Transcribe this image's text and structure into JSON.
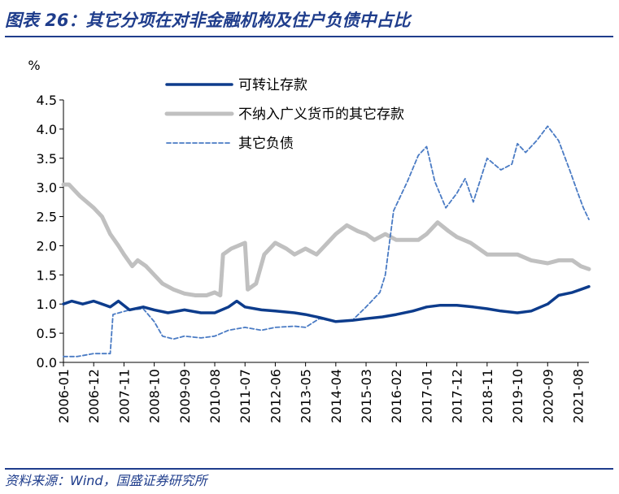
{
  "title": "图表 26：其它分项在对非金融机构及住户负债中占比",
  "source": "资料来源：Wind，国盛证券研究所",
  "chart_data": {
    "type": "line",
    "ylabel": "%",
    "ylim": [
      0,
      4.5
    ],
    "yticks": [
      "0.0",
      "0.5",
      "1.0",
      "1.5",
      "2.0",
      "2.5",
      "3.0",
      "3.5",
      "4.0",
      "4.5"
    ],
    "xticks": [
      "2006-01",
      "2006-12",
      "2007-11",
      "2008-10",
      "2009-09",
      "2010-08",
      "2011-07",
      "2012-06",
      "2013-05",
      "2014-04",
      "2015-03",
      "2016-02",
      "2017-01",
      "2017-12",
      "2018-11",
      "2019-10",
      "2020-09",
      "2021-08"
    ],
    "x_start": "2006-01",
    "x_end": "2021-12",
    "legend_position": "top-center",
    "colors": {
      "s1": "#0d3c8c",
      "s2": "#c0c0c0",
      "s3": "#4a7bc4"
    },
    "series": [
      {
        "name": "可转让存款",
        "points": [
          [
            "2006-01",
            1.0
          ],
          [
            "2006-04",
            1.05
          ],
          [
            "2006-08",
            1.0
          ],
          [
            "2006-12",
            1.05
          ],
          [
            "2007-03",
            1.0
          ],
          [
            "2007-06",
            0.95
          ],
          [
            "2007-09",
            1.05
          ],
          [
            "2008-01",
            0.9
          ],
          [
            "2008-06",
            0.95
          ],
          [
            "2008-10",
            0.9
          ],
          [
            "2009-03",
            0.85
          ],
          [
            "2009-09",
            0.9
          ],
          [
            "2010-03",
            0.85
          ],
          [
            "2010-08",
            0.85
          ],
          [
            "2011-01",
            0.95
          ],
          [
            "2011-04",
            1.05
          ],
          [
            "2011-07",
            0.95
          ],
          [
            "2012-01",
            0.9
          ],
          [
            "2012-06",
            0.88
          ],
          [
            "2013-01",
            0.85
          ],
          [
            "2013-05",
            0.82
          ],
          [
            "2013-10",
            0.77
          ],
          [
            "2014-04",
            0.7
          ],
          [
            "2014-10",
            0.72
          ],
          [
            "2015-03",
            0.75
          ],
          [
            "2015-09",
            0.78
          ],
          [
            "2016-02",
            0.82
          ],
          [
            "2016-08",
            0.88
          ],
          [
            "2017-01",
            0.95
          ],
          [
            "2017-06",
            0.98
          ],
          [
            "2017-12",
            0.98
          ],
          [
            "2018-06",
            0.95
          ],
          [
            "2018-11",
            0.92
          ],
          [
            "2019-04",
            0.88
          ],
          [
            "2019-10",
            0.85
          ],
          [
            "2020-03",
            0.88
          ],
          [
            "2020-09",
            1.0
          ],
          [
            "2021-01",
            1.15
          ],
          [
            "2021-06",
            1.2
          ],
          [
            "2021-09",
            1.25
          ],
          [
            "2021-12",
            1.3
          ]
        ]
      },
      {
        "name": "不纳入广义货币的其它存款",
        "points": [
          [
            "2006-01",
            3.05
          ],
          [
            "2006-03",
            3.05
          ],
          [
            "2006-07",
            2.85
          ],
          [
            "2006-12",
            2.65
          ],
          [
            "2007-03",
            2.5
          ],
          [
            "2007-06",
            2.2
          ],
          [
            "2007-09",
            2.0
          ],
          [
            "2007-11",
            1.85
          ],
          [
            "2008-02",
            1.65
          ],
          [
            "2008-04",
            1.75
          ],
          [
            "2008-07",
            1.65
          ],
          [
            "2008-10",
            1.5
          ],
          [
            "2009-01",
            1.35
          ],
          [
            "2009-05",
            1.25
          ],
          [
            "2009-09",
            1.18
          ],
          [
            "2010-01",
            1.15
          ],
          [
            "2010-05",
            1.15
          ],
          [
            "2010-08",
            1.2
          ],
          [
            "2010-10",
            1.15
          ],
          [
            "2010-11",
            1.85
          ],
          [
            "2011-02",
            1.95
          ],
          [
            "2011-07",
            2.05
          ],
          [
            "2011-08",
            1.25
          ],
          [
            "2011-11",
            1.35
          ],
          [
            "2012-02",
            1.85
          ],
          [
            "2012-06",
            2.05
          ],
          [
            "2012-10",
            1.95
          ],
          [
            "2013-01",
            1.85
          ],
          [
            "2013-05",
            1.95
          ],
          [
            "2013-09",
            1.85
          ],
          [
            "2014-01",
            2.05
          ],
          [
            "2014-04",
            2.2
          ],
          [
            "2014-08",
            2.35
          ],
          [
            "2014-12",
            2.25
          ],
          [
            "2015-03",
            2.2
          ],
          [
            "2015-06",
            2.1
          ],
          [
            "2015-10",
            2.2
          ],
          [
            "2016-02",
            2.1
          ],
          [
            "2016-06",
            2.1
          ],
          [
            "2016-10",
            2.1
          ],
          [
            "2017-01",
            2.2
          ],
          [
            "2017-05",
            2.4
          ],
          [
            "2017-09",
            2.25
          ],
          [
            "2017-12",
            2.15
          ],
          [
            "2018-05",
            2.05
          ],
          [
            "2018-08",
            1.95
          ],
          [
            "2018-11",
            1.85
          ],
          [
            "2019-04",
            1.85
          ],
          [
            "2019-10",
            1.85
          ],
          [
            "2020-03",
            1.75
          ],
          [
            "2020-09",
            1.7
          ],
          [
            "2021-01",
            1.75
          ],
          [
            "2021-06",
            1.75
          ],
          [
            "2021-09",
            1.65
          ],
          [
            "2021-12",
            1.6
          ]
        ]
      },
      {
        "name": "其它负债",
        "points": [
          [
            "2006-01",
            0.1
          ],
          [
            "2006-06",
            0.1
          ],
          [
            "2006-12",
            0.15
          ],
          [
            "2007-06",
            0.15
          ],
          [
            "2007-07",
            0.82
          ],
          [
            "2008-01",
            0.9
          ],
          [
            "2008-06",
            0.92
          ],
          [
            "2008-10",
            0.7
          ],
          [
            "2009-01",
            0.45
          ],
          [
            "2009-05",
            0.4
          ],
          [
            "2009-09",
            0.45
          ],
          [
            "2010-03",
            0.42
          ],
          [
            "2010-08",
            0.45
          ],
          [
            "2011-01",
            0.55
          ],
          [
            "2011-07",
            0.6
          ],
          [
            "2012-01",
            0.55
          ],
          [
            "2012-06",
            0.6
          ],
          [
            "2013-01",
            0.62
          ],
          [
            "2013-05",
            0.6
          ],
          [
            "2013-10",
            0.75
          ],
          [
            "2014-04",
            0.7
          ],
          [
            "2014-10",
            0.72
          ],
          [
            "2015-03",
            0.95
          ],
          [
            "2015-08",
            1.2
          ],
          [
            "2015-10",
            1.5
          ],
          [
            "2016-01",
            2.6
          ],
          [
            "2016-06",
            3.1
          ],
          [
            "2016-10",
            3.55
          ],
          [
            "2017-01",
            3.7
          ],
          [
            "2017-04",
            3.1
          ],
          [
            "2017-08",
            2.65
          ],
          [
            "2017-12",
            2.9
          ],
          [
            "2018-03",
            3.15
          ],
          [
            "2018-06",
            2.75
          ],
          [
            "2018-11",
            3.5
          ],
          [
            "2019-04",
            3.3
          ],
          [
            "2019-08",
            3.4
          ],
          [
            "2019-10",
            3.75
          ],
          [
            "2020-01",
            3.6
          ],
          [
            "2020-05",
            3.8
          ],
          [
            "2020-09",
            4.05
          ],
          [
            "2021-01",
            3.8
          ],
          [
            "2021-05",
            3.3
          ],
          [
            "2021-08",
            2.9
          ],
          [
            "2021-10",
            2.65
          ],
          [
            "2021-12",
            2.45
          ]
        ]
      }
    ]
  }
}
